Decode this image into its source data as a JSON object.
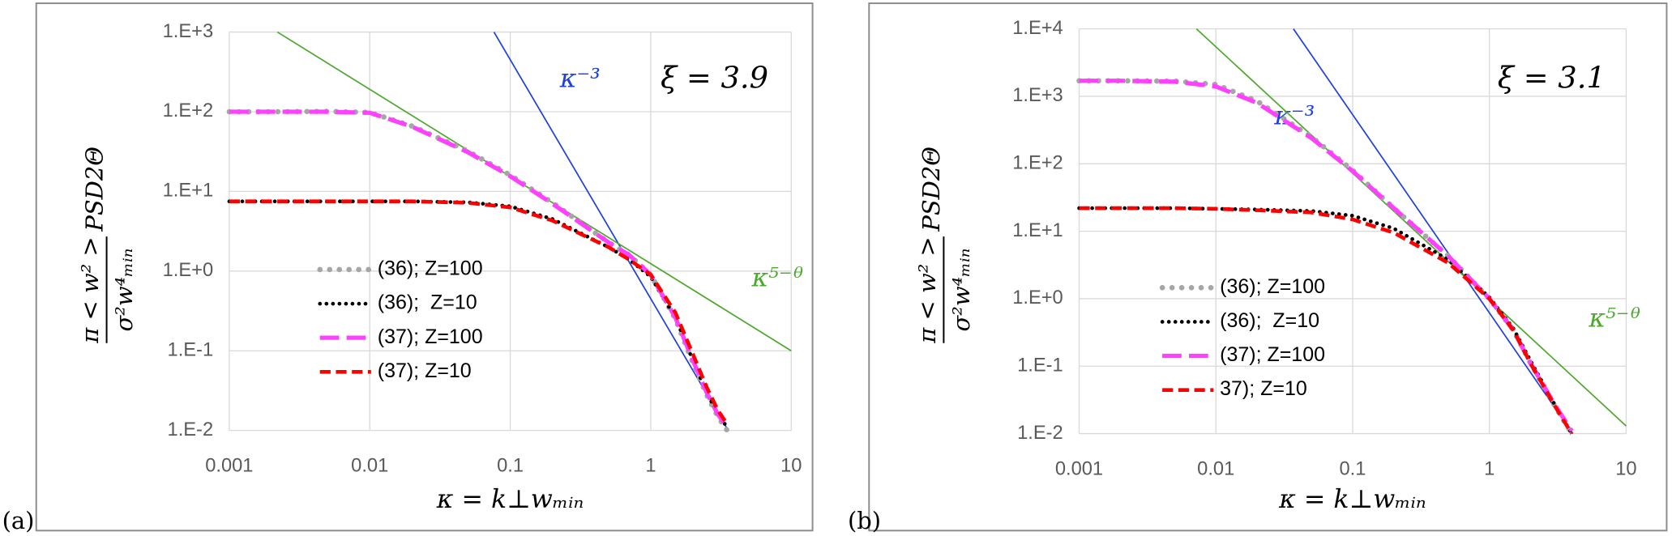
{
  "chart_data": [
    {
      "type": "line",
      "panel_label": "(a)",
      "log_x": true,
      "log_y": true,
      "grid": true,
      "x_label": "κ = k⊥wₘᵢₙ",
      "y_label": {
        "numerator": "π < w² >",
        "denominator": "σ²w⁴ₘᵢₙ",
        "factor": "PSD2Θ"
      },
      "annotations": [
        "ξ = 3.9"
      ],
      "xlim": [
        0.001,
        10
      ],
      "xticks": [
        0.001,
        0.01,
        0.1,
        1,
        10
      ],
      "ylim": [
        0.01,
        1000
      ],
      "yticks": [
        {
          "value": 0.01,
          "label": "1.E-2"
        },
        {
          "value": 0.1,
          "label": "1.E-1"
        },
        {
          "value": 1,
          "label": "1.E+0"
        },
        {
          "value": 10,
          "label": "1.E+1"
        },
        {
          "value": 100,
          "label": "1.E+2"
        },
        {
          "value": 1000,
          "label": "1.E+3"
        }
      ],
      "x": [
        0.001,
        0.002,
        0.005,
        0.01,
        0.02,
        0.05,
        0.1,
        0.2,
        0.5,
        0.7,
        1,
        1.5,
        2,
        2.5,
        3,
        3.5
      ],
      "series": [
        {
          "name": "(36); Z=100",
          "color": "#a6a6a6",
          "style": "dotted",
          "values": [
            100,
            100,
            101,
            98,
            66,
            32,
            16,
            7.2,
            2.3,
            1.6,
            0.9,
            0.25,
            0.07,
            0.028,
            0.015,
            0.01
          ]
        },
        {
          "name": "(36);  Z=10",
          "color": "#000000",
          "style": "dotted-fine",
          "values": [
            7.5,
            7.5,
            7.5,
            7.5,
            7.5,
            7.3,
            6.5,
            4.5,
            2,
            1.4,
            0.85,
            0.26,
            0.075,
            0.03,
            0.016,
            0.011
          ]
        },
        {
          "name": "(37); Z=100",
          "color": "#ff40ff",
          "style": "long-dash",
          "values": [
            100,
            100,
            100,
            97,
            65,
            31,
            15.5,
            7,
            2.3,
            1.6,
            0.9,
            0.26,
            0.075,
            0.03,
            0.016,
            0.011
          ]
        },
        {
          "name": "(37); Z=10",
          "color": "#ff0000",
          "style": "dash",
          "values": [
            7.5,
            7.5,
            7.5,
            7.5,
            7.5,
            7.2,
            6.3,
            4.3,
            2,
            1.4,
            0.9,
            0.3,
            0.09,
            0.035,
            0.018,
            0.012
          ]
        }
      ],
      "reference_lines": [
        {
          "label": "κ⁻³",
          "color": "#1f3fe0",
          "x": [
            0.0766,
            3.56
          ],
          "values": [
            1000,
            0.01
          ]
        },
        {
          "label": "κ⁵⁻ᶿ",
          "color": "#4ea72e",
          "x": [
            0.0022,
            10
          ],
          "values": [
            1000,
            0.1
          ]
        }
      ]
    },
    {
      "type": "line",
      "panel_label": "(b)",
      "log_x": true,
      "log_y": true,
      "grid": true,
      "x_label": "κ = k⊥wₘᵢₙ",
      "y_label": {
        "numerator": "π < w² >",
        "denominator": "σ²w⁴ₘᵢₙ",
        "factor": "PSD2Θ"
      },
      "annotations": [
        "ξ = 3.1"
      ],
      "xlim": [
        0.001,
        10
      ],
      "xticks": [
        0.001,
        0.01,
        0.1,
        1,
        10
      ],
      "ylim": [
        0.01,
        10000
      ],
      "yticks": [
        {
          "value": 0.01,
          "label": "1.E-2"
        },
        {
          "value": 0.1,
          "label": "1.E-1"
        },
        {
          "value": 1,
          "label": "1.E+0"
        },
        {
          "value": 10,
          "label": "1.E+1"
        },
        {
          "value": 100,
          "label": "1.E+2"
        },
        {
          "value": 1000,
          "label": "1.E+3"
        },
        {
          "value": 10000,
          "label": "1.E+4"
        }
      ],
      "x": [
        0.001,
        0.002,
        0.005,
        0.01,
        0.02,
        0.05,
        0.1,
        0.2,
        0.5,
        1,
        1.5,
        2,
        3,
        4
      ],
      "series": [
        {
          "name": "(36); Z=100",
          "color": "#a6a6a6",
          "style": "dotted",
          "values": [
            1700,
            1700,
            1680,
            1500,
            850,
            250,
            80,
            22,
            4.3,
            1,
            0.34,
            0.11,
            0.026,
            0.01
          ]
        },
        {
          "name": "(36);  Z=10",
          "color": "#000000",
          "style": "dotted-fine",
          "values": [
            22,
            22,
            22,
            21.5,
            21,
            20,
            17,
            11,
            3.8,
            1.05,
            0.36,
            0.12,
            0.027,
            0.01
          ]
        },
        {
          "name": "(37); Z=100",
          "color": "#ff40ff",
          "style": "long-dash",
          "values": [
            1700,
            1700,
            1650,
            1400,
            800,
            240,
            78,
            22,
            4.3,
            1,
            0.34,
            0.11,
            0.027,
            0.011
          ]
        },
        {
          "name": "37); Z=10",
          "color": "#ff0000",
          "style": "dash",
          "values": [
            22,
            22,
            22,
            21.5,
            20.5,
            19,
            15,
            9.5,
            3.4,
            1,
            0.34,
            0.11,
            0.026,
            0.01
          ]
        }
      ],
      "reference_lines": [
        {
          "label": "κ⁻³",
          "color": "#1f3fe0",
          "x": [
            0.0369,
            4.07
          ],
          "values": [
            10000,
            0.01
          ]
        },
        {
          "label": "κ⁵⁻ᶿ",
          "color": "#4ea72e",
          "x": [
            0.00721,
            10
          ],
          "values": [
            10000,
            0.013
          ]
        }
      ]
    }
  ]
}
